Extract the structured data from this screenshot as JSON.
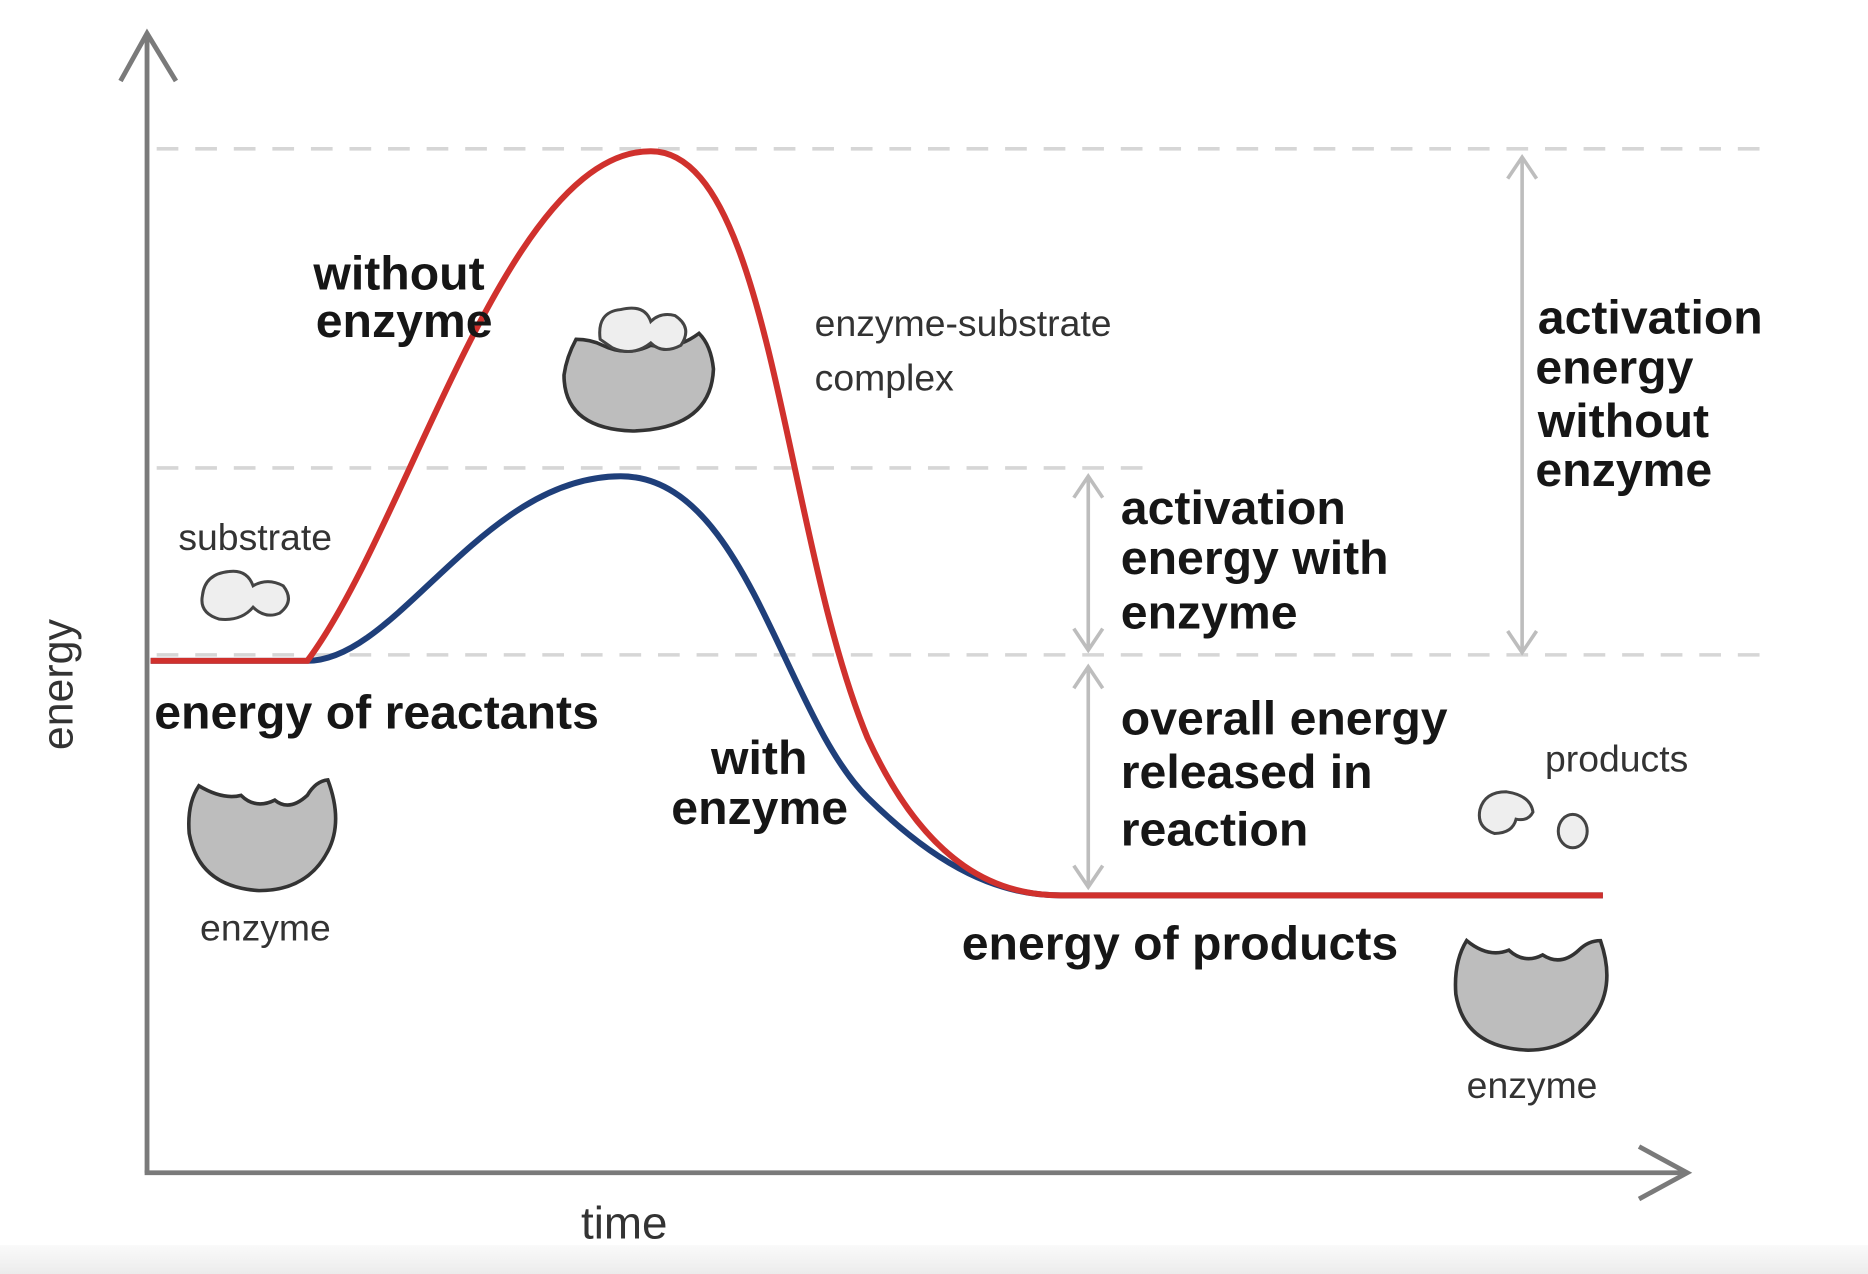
{
  "axes": {
    "y_label": "energy",
    "x_label": "time"
  },
  "curves": {
    "without_enzyme": {
      "label_lines": [
        "without",
        "enzyme"
      ],
      "color": "#d0312d"
    },
    "with_enzyme": {
      "label_lines": [
        "with",
        "enzyme"
      ],
      "color": "#1f3f7a"
    }
  },
  "labels": {
    "substrate": "substrate",
    "energy_of_reactants": "energy of reactants",
    "enzyme_left": "enzyme",
    "complex_lines": [
      "enzyme-substrate",
      "complex"
    ],
    "activation_with_lines": [
      "activation",
      "energy with",
      "enzyme"
    ],
    "overall_lines": [
      "overall energy",
      "released in",
      "reaction"
    ],
    "activation_without_lines": [
      "activation",
      "energy",
      "without",
      "enzyme"
    ],
    "products": "products",
    "energy_of_products": "energy of products",
    "enzyme_right": "enzyme"
  }
}
